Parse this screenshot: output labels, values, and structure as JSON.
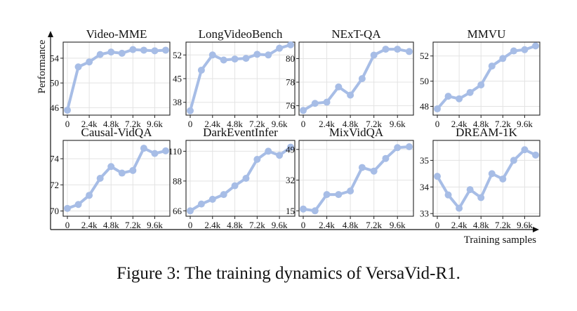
{
  "figure": {
    "ylabel": "Performance",
    "xlabel": "Training samples",
    "caption": "Figure 3: The training dynamics of VersaVid-R1."
  },
  "style": {
    "line_color": "#a7bde6",
    "marker_color": "#a7bde6",
    "grid_color": "#e3e3e3"
  },
  "chart_data": [
    {
      "type": "line",
      "title": "Video-MME",
      "x": [
        0,
        1200,
        2400,
        3600,
        4800,
        6000,
        7200,
        8400,
        9600,
        10800
      ],
      "x_tick_labels": [
        "0",
        "2.4k",
        "4.8k",
        "7.2k",
        "9.6k"
      ],
      "y": [
        45.6,
        52.6,
        53.4,
        54.6,
        55.0,
        54.8,
        55.4,
        55.3,
        55.2,
        55.3
      ],
      "yticks": [
        46,
        50,
        54
      ],
      "ylim": [
        44.8,
        56.6
      ],
      "grid": true
    },
    {
      "type": "line",
      "title": "LongVideoBench",
      "x": [
        0,
        1200,
        2400,
        3600,
        4800,
        6000,
        7200,
        8400,
        9600,
        10800
      ],
      "x_tick_labels": [
        "0",
        "2.4k",
        "4.8k",
        "7.2k",
        "9.6k"
      ],
      "y": [
        35.5,
        47.5,
        52.0,
        50.5,
        50.8,
        51.0,
        52.2,
        52.0,
        54.0,
        55.0
      ],
      "yticks": [
        38,
        45,
        52
      ],
      "ylim": [
        34.2,
        55.8
      ],
      "grid": true
    },
    {
      "type": "line",
      "title": "NExT-QA",
      "x": [
        0,
        1200,
        2400,
        3600,
        4800,
        6000,
        7200,
        8400,
        9600,
        10800
      ],
      "x_tick_labels": [
        "0",
        "2.4k",
        "4.8k",
        "7.2k",
        "9.6k"
      ],
      "y": [
        75.6,
        76.2,
        76.3,
        77.6,
        76.9,
        78.3,
        80.3,
        80.8,
        80.8,
        80.6
      ],
      "yticks": [
        76,
        78,
        80
      ],
      "ylim": [
        75.2,
        81.4
      ],
      "grid": true
    },
    {
      "type": "line",
      "title": "MMVU",
      "x": [
        0,
        1200,
        2400,
        3600,
        4800,
        6000,
        7200,
        8400,
        9600,
        10800
      ],
      "x_tick_labels": [
        "0",
        "2.4k",
        "4.8k",
        "7.2k",
        "9.6k"
      ],
      "y": [
        47.8,
        48.8,
        48.6,
        49.1,
        49.7,
        51.2,
        51.8,
        52.4,
        52.5,
        52.8
      ],
      "yticks": [
        48,
        50,
        52
      ],
      "ylim": [
        47.3,
        53.1
      ],
      "grid": true
    },
    {
      "type": "line",
      "title": "Causal-VidQA",
      "x": [
        0,
        1200,
        2400,
        3600,
        4800,
        6000,
        7200,
        8400,
        9600,
        10800
      ],
      "x_tick_labels": [
        "0",
        "2.4k",
        "4.8k",
        "7.2k",
        "9.6k"
      ],
      "y": [
        70.2,
        70.5,
        71.2,
        72.5,
        73.4,
        72.9,
        73.1,
        74.8,
        74.4,
        74.6
      ],
      "yticks": [
        70,
        72,
        74
      ],
      "ylim": [
        69.6,
        75.4
      ],
      "grid": true
    },
    {
      "type": "line",
      "title": "DarkEventInfer",
      "x": [
        0,
        1200,
        2400,
        3600,
        4800,
        6000,
        7200,
        8400,
        9600,
        10800
      ],
      "x_tick_labels": [
        "0",
        "2.4k",
        "4.8k",
        "7.2k",
        "9.6k"
      ],
      "y": [
        66.0,
        71.0,
        74.5,
        78.0,
        84.5,
        90.0,
        104.0,
        110.0,
        107.0,
        113.0
      ],
      "yticks": [
        66,
        88,
        110
      ],
      "ylim": [
        62.0,
        118.0
      ],
      "grid": true
    },
    {
      "type": "line",
      "title": "MixVidQA",
      "x": [
        0,
        1200,
        2400,
        3600,
        4800,
        6000,
        7200,
        8400,
        9600,
        10800
      ],
      "x_tick_labels": [
        "0",
        "2.4k",
        "4.8k",
        "7.2k",
        "9.6k"
      ],
      "y": [
        16.0,
        15.0,
        24.0,
        24.0,
        26.0,
        39.0,
        37.0,
        44.0,
        50.0,
        50.5
      ],
      "yticks": [
        15,
        32,
        49
      ],
      "ylim": [
        12.0,
        54.0
      ],
      "grid": true
    },
    {
      "type": "line",
      "title": "DREAM-1K",
      "x": [
        0,
        1200,
        2400,
        3600,
        4800,
        6000,
        7200,
        8400,
        9600,
        10800
      ],
      "x_tick_labels": [
        "0",
        "2.4k",
        "4.8k",
        "7.2k",
        "9.6k"
      ],
      "y": [
        34.4,
        33.7,
        33.2,
        33.9,
        33.6,
        34.5,
        34.3,
        35.0,
        35.4,
        35.2
      ],
      "yticks": [
        33,
        34,
        35
      ],
      "ylim": [
        32.9,
        35.75
      ],
      "grid": true
    }
  ]
}
